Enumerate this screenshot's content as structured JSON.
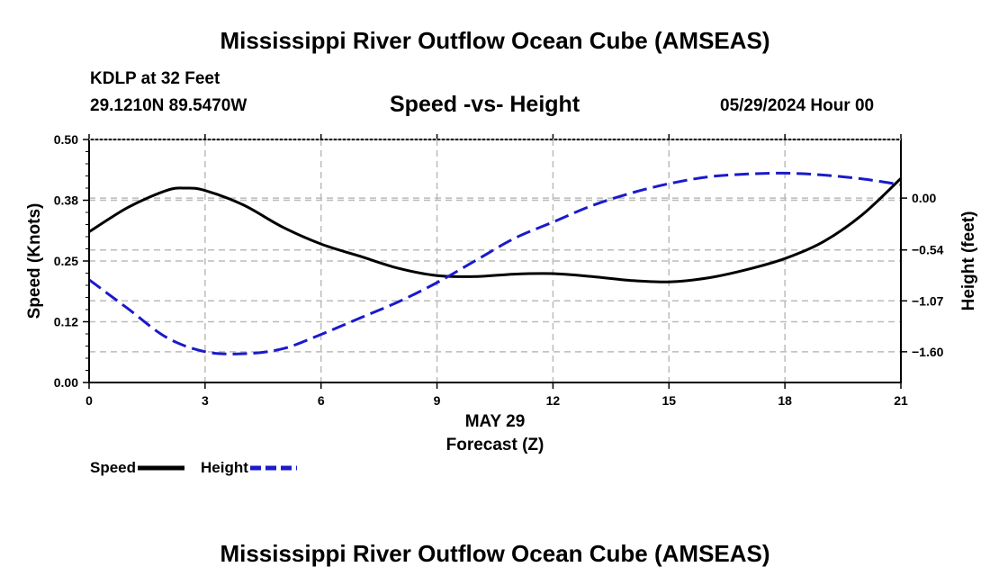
{
  "header": {
    "title": "Mississippi River Outflow Ocean Cube (AMSEAS)",
    "station": "KDLP at 32 Feet",
    "coords": "29.1210N  89.5470W",
    "subtitle": "Speed -vs- Height",
    "datetime": "05/29/2024 Hour 00"
  },
  "footer": {
    "title": "Mississippi River Outflow Ocean Cube (AMSEAS)"
  },
  "legend": {
    "speed_label": "Speed",
    "height_label": "Height"
  },
  "colors": {
    "speed": "#000000",
    "height": "#1a1acc",
    "grid": "#bbbbbb"
  },
  "chart_data": {
    "type": "line",
    "title": "Speed -vs- Height",
    "xlabel_date": "MAY 29",
    "xlabel": "Forecast (Z)",
    "ylabel_left": "Speed (Knots)",
    "ylabel_right": "Height (feet)",
    "xlim": [
      0,
      21
    ],
    "x_ticks": [
      0,
      3,
      6,
      9,
      12,
      15,
      18,
      21
    ],
    "x_tick_labels": [
      "0",
      "3",
      "6",
      "9",
      "12",
      "15",
      "18",
      "21"
    ],
    "ylim_left": [
      0,
      0.5
    ],
    "y_left_ticks": [
      0,
      0.125,
      0.25,
      0.375,
      0.5
    ],
    "y_left_tick_labels": [
      "0.00",
      "0.12",
      "0.25",
      "0.38",
      "0.50"
    ],
    "ylim_right": [
      -1.92,
      0.61
    ],
    "y_right_ticks": [
      -1.6,
      -1.07,
      -0.54,
      0.0
    ],
    "y_right_tick_labels": [
      "−1.60",
      "−1.07",
      "−0.54",
      "0.00"
    ],
    "grid": true,
    "series": [
      {
        "name": "Speed",
        "axis": "left",
        "style": "solid",
        "x": [
          0,
          1,
          2,
          2.5,
          3,
          4,
          5,
          6,
          7,
          8,
          9,
          10,
          11,
          12,
          13,
          14,
          15,
          16,
          17,
          18,
          19,
          20,
          21
        ],
        "values": [
          0.31,
          0.36,
          0.395,
          0.4,
          0.395,
          0.365,
          0.32,
          0.285,
          0.26,
          0.235,
          0.22,
          0.218,
          0.223,
          0.224,
          0.218,
          0.21,
          0.207,
          0.215,
          0.232,
          0.255,
          0.29,
          0.345,
          0.42
        ]
      },
      {
        "name": "Height",
        "axis": "right",
        "style": "dashed",
        "x": [
          0,
          1,
          2,
          3,
          4,
          5,
          6,
          7,
          8,
          9,
          10,
          11,
          12,
          13,
          14,
          15,
          16,
          17,
          18,
          19,
          20,
          21
        ],
        "values": [
          -0.85,
          -1.15,
          -1.45,
          -1.6,
          -1.62,
          -1.57,
          -1.42,
          -1.25,
          -1.08,
          -0.88,
          -0.65,
          -0.42,
          -0.25,
          -0.08,
          0.05,
          0.15,
          0.22,
          0.25,
          0.26,
          0.24,
          0.2,
          0.14
        ]
      }
    ]
  }
}
